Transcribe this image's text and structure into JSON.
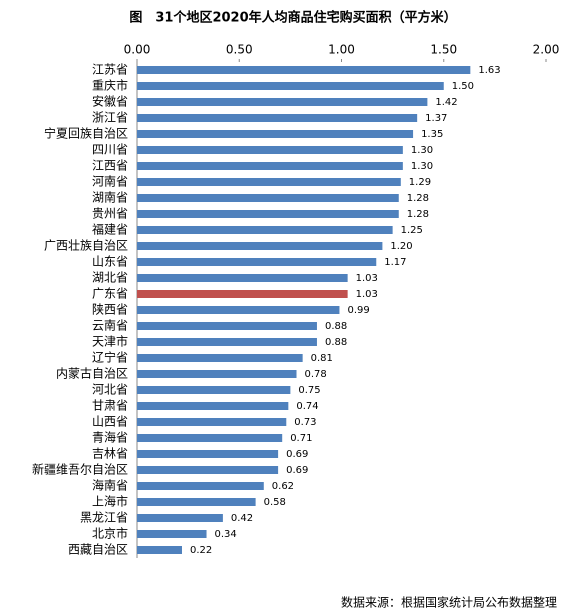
{
  "chart_data": {
    "type": "bar",
    "orientation": "horizontal",
    "title": "图　31个地区2020年人均商品住宅购买面积（平方米）",
    "source": "数据来源：根据国家统计局公布数据整理",
    "categories": [
      "江苏省",
      "重庆市",
      "安徽省",
      "浙江省",
      "宁夏回族自治区",
      "四川省",
      "江西省",
      "河南省",
      "湖南省",
      "贵州省",
      "福建省",
      "广西壮族自治区",
      "山东省",
      "湖北省",
      "广东省",
      "陕西省",
      "云南省",
      "天津市",
      "辽宁省",
      "内蒙古自治区",
      "河北省",
      "甘肃省",
      "山西省",
      "青海省",
      "吉林省",
      "新疆维吾尔自治区",
      "海南省",
      "上海市",
      "黑龙江省",
      "北京市",
      "西藏自治区"
    ],
    "values": [
      1.63,
      1.5,
      1.42,
      1.37,
      1.35,
      1.3,
      1.3,
      1.29,
      1.28,
      1.28,
      1.25,
      1.2,
      1.17,
      1.03,
      1.03,
      0.99,
      0.88,
      0.88,
      0.81,
      0.78,
      0.75,
      0.74,
      0.73,
      0.71,
      0.69,
      0.69,
      0.62,
      0.58,
      0.42,
      0.34,
      0.22
    ],
    "value_labels": [
      "1.63",
      "1.50",
      "1.42",
      "1.37",
      "1.35",
      "1.30",
      "1.30",
      "1.29",
      "1.28",
      "1.28",
      "1.25",
      "1.20",
      "1.17",
      "1.03",
      "1.03",
      "0.99",
      "0.88",
      "0.88",
      "0.81",
      "0.78",
      "0.75",
      "0.74",
      "0.73",
      "0.71",
      "0.69",
      "0.69",
      "0.62",
      "0.58",
      "0.42",
      "0.34",
      "0.22"
    ],
    "colors": [
      "#4f81bd",
      "#4f81bd",
      "#4f81bd",
      "#4f81bd",
      "#4f81bd",
      "#4f81bd",
      "#4f81bd",
      "#4f81bd",
      "#4f81bd",
      "#4f81bd",
      "#4f81bd",
      "#4f81bd",
      "#4f81bd",
      "#4f81bd",
      "#c0504d",
      "#4f81bd",
      "#4f81bd",
      "#4f81bd",
      "#4f81bd",
      "#4f81bd",
      "#4f81bd",
      "#4f81bd",
      "#4f81bd",
      "#4f81bd",
      "#4f81bd",
      "#4f81bd",
      "#4f81bd",
      "#4f81bd",
      "#4f81bd",
      "#4f81bd",
      "#4f81bd"
    ],
    "xlim": [
      0,
      2
    ],
    "xticks": [
      {
        "value": 0,
        "label": "0.00"
      },
      {
        "value": 0.5,
        "label": "0.50"
      },
      {
        "value": 1,
        "label": "1.00"
      },
      {
        "value": 1.5,
        "label": "1.50"
      },
      {
        "value": 2,
        "label": "2.00"
      }
    ]
  }
}
